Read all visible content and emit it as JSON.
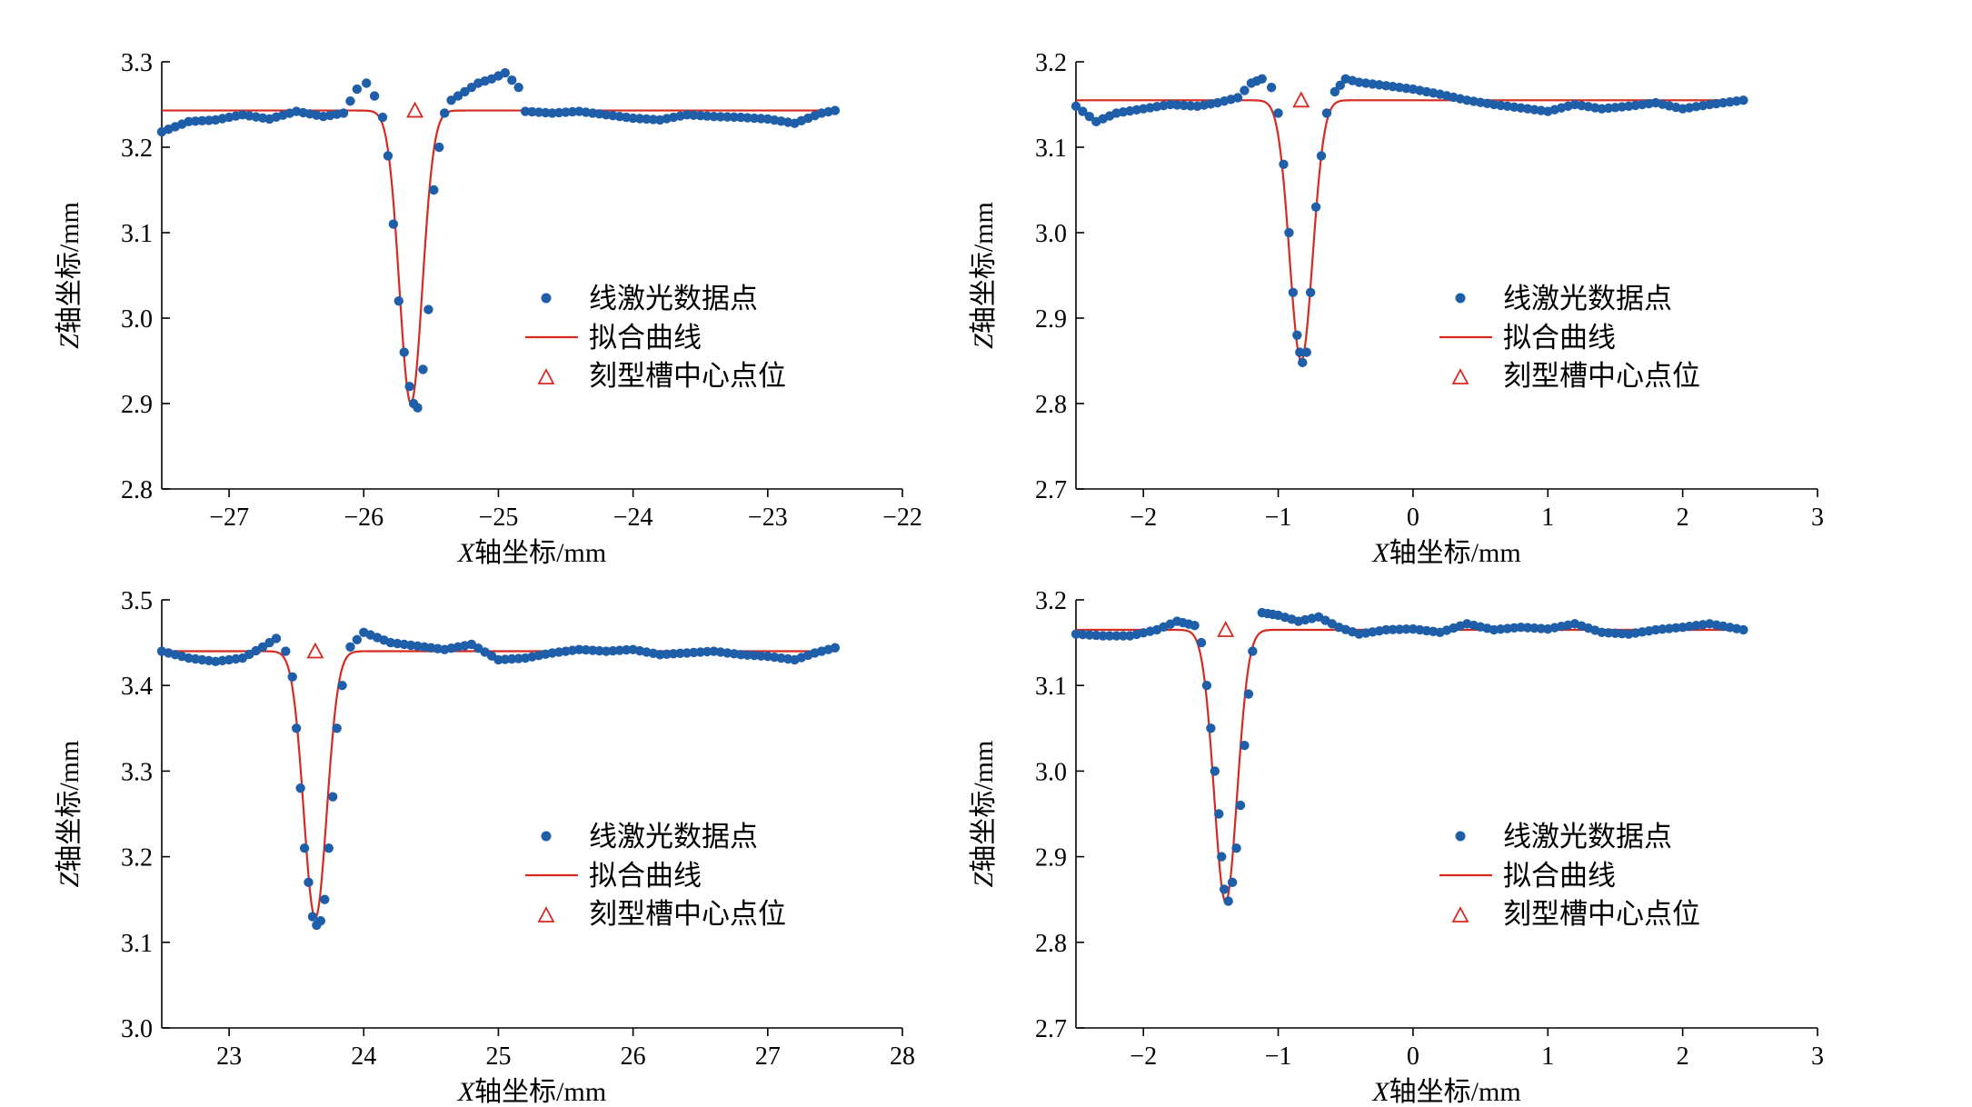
{
  "colors": {
    "points": "#1f5ea8",
    "fit": "#d42a20",
    "marker": "#d42a20",
    "axis": "#000000"
  },
  "legend": {
    "points_label": "线激光数据点",
    "fit_label": "拟合曲线",
    "center_label": "刻型槽中心点位"
  },
  "chart_data": [
    {
      "type": "scatter",
      "xlabel_var": "X",
      "xlabel_rest": "轴坐标/mm",
      "ylabel_var": "Z",
      "ylabel_rest": "轴坐标/mm",
      "xlim": [
        -27.5,
        -22
      ],
      "ylim": [
        2.8,
        3.3
      ],
      "xticks": [
        -27,
        -26,
        -25,
        -24,
        -23,
        -22
      ],
      "xtick_labels": [
        "−27",
        "−26",
        "−25",
        "−24",
        "−23",
        "−22"
      ],
      "yticks": [
        2.8,
        2.9,
        3.0,
        3.1,
        3.2,
        3.3
      ],
      "ytick_labels": [
        "2.8",
        "2.9",
        "3.0",
        "3.1",
        "3.2",
        "3.3"
      ],
      "legend_position": "center-right",
      "fit": {
        "baseline": 3.243,
        "center": -25.65,
        "depth": 0.343,
        "sigma": 0.085
      },
      "center_marker": {
        "x": -25.62,
        "y": 3.243
      },
      "series_points": [
        [
          -27.5,
          3.218
        ],
        [
          -27.3,
          3.23
        ],
        [
          -27.1,
          3.232
        ],
        [
          -26.9,
          3.238
        ],
        [
          -26.7,
          3.233
        ],
        [
          -26.5,
          3.242
        ],
        [
          -26.3,
          3.236
        ],
        [
          -26.15,
          3.24
        ],
        [
          -26.05,
          3.268
        ],
        [
          -25.98,
          3.275
        ],
        [
          -25.92,
          3.26
        ],
        [
          -25.86,
          3.235
        ],
        [
          -25.82,
          3.19
        ],
        [
          -25.78,
          3.11
        ],
        [
          -25.74,
          3.02
        ],
        [
          -25.7,
          2.96
        ],
        [
          -25.66,
          2.92
        ],
        [
          -25.63,
          2.9
        ],
        [
          -25.6,
          2.895
        ],
        [
          -25.56,
          2.94
        ],
        [
          -25.52,
          3.01
        ],
        [
          -25.48,
          3.15
        ],
        [
          -25.44,
          3.2
        ],
        [
          -25.4,
          3.24
        ],
        [
          -25.35,
          3.255
        ],
        [
          -25.25,
          3.265
        ],
        [
          -25.15,
          3.275
        ],
        [
          -25.05,
          3.28
        ],
        [
          -24.95,
          3.287
        ],
        [
          -24.85,
          3.27
        ],
        [
          -24.8,
          3.242
        ],
        [
          -24.6,
          3.24
        ],
        [
          -24.4,
          3.242
        ],
        [
          -24.2,
          3.238
        ],
        [
          -24.0,
          3.234
        ],
        [
          -23.8,
          3.232
        ],
        [
          -23.6,
          3.238
        ],
        [
          -23.4,
          3.236
        ],
        [
          -23.2,
          3.235
        ],
        [
          -23.0,
          3.233
        ],
        [
          -22.8,
          3.228
        ],
        [
          -22.6,
          3.24
        ],
        [
          -22.5,
          3.243
        ]
      ]
    },
    {
      "type": "scatter",
      "xlabel_var": "X",
      "xlabel_rest": "轴坐标/mm",
      "ylabel_var": "Z",
      "ylabel_rest": "轴坐标/mm",
      "xlim": [
        -2.5,
        3
      ],
      "ylim": [
        2.7,
        3.2
      ],
      "xticks": [
        -2,
        -1,
        0,
        1,
        2,
        3
      ],
      "xtick_labels": [
        "−2",
        "−1",
        "0",
        "1",
        "2",
        "3"
      ],
      "yticks": [
        2.7,
        2.8,
        2.9,
        3.0,
        3.1,
        3.2
      ],
      "ytick_labels": [
        "2.7",
        "2.8",
        "2.9",
        "3.0",
        "3.1",
        "3.2"
      ],
      "legend_position": "center-right",
      "fit": {
        "baseline": 3.155,
        "center": -0.83,
        "depth": 0.305,
        "sigma": 0.085
      },
      "center_marker": {
        "x": -0.83,
        "y": 3.155
      },
      "series_points": [
        [
          -2.5,
          3.148
        ],
        [
          -2.35,
          3.13
        ],
        [
          -2.2,
          3.14
        ],
        [
          -2.0,
          3.145
        ],
        [
          -1.8,
          3.15
        ],
        [
          -1.6,
          3.148
        ],
        [
          -1.45,
          3.152
        ],
        [
          -1.3,
          3.158
        ],
        [
          -1.2,
          3.175
        ],
        [
          -1.12,
          3.18
        ],
        [
          -1.05,
          3.17
        ],
        [
          -1.0,
          3.14
        ],
        [
          -0.96,
          3.08
        ],
        [
          -0.92,
          3.0
        ],
        [
          -0.89,
          2.93
        ],
        [
          -0.86,
          2.88
        ],
        [
          -0.84,
          2.86
        ],
        [
          -0.82,
          2.848
        ],
        [
          -0.79,
          2.86
        ],
        [
          -0.76,
          2.93
        ],
        [
          -0.72,
          3.03
        ],
        [
          -0.68,
          3.09
        ],
        [
          -0.64,
          3.14
        ],
        [
          -0.58,
          3.165
        ],
        [
          -0.5,
          3.18
        ],
        [
          -0.4,
          3.176
        ],
        [
          -0.2,
          3.172
        ],
        [
          0.0,
          3.168
        ],
        [
          0.2,
          3.162
        ],
        [
          0.4,
          3.155
        ],
        [
          0.6,
          3.15
        ],
        [
          0.8,
          3.146
        ],
        [
          1.0,
          3.142
        ],
        [
          1.2,
          3.15
        ],
        [
          1.4,
          3.145
        ],
        [
          1.6,
          3.148
        ],
        [
          1.8,
          3.152
        ],
        [
          2.0,
          3.145
        ],
        [
          2.2,
          3.15
        ],
        [
          2.45,
          3.155
        ]
      ]
    },
    {
      "type": "scatter",
      "xlabel_var": "X",
      "xlabel_rest": "轴坐标/mm",
      "ylabel_var": "Z",
      "ylabel_rest": "轴坐标/mm",
      "xlim": [
        22.5,
        28
      ],
      "ylim": [
        3.0,
        3.5
      ],
      "xticks": [
        23,
        24,
        25,
        26,
        27,
        28
      ],
      "xtick_labels": [
        "23",
        "24",
        "25",
        "26",
        "27",
        "28"
      ],
      "yticks": [
        3.0,
        3.1,
        3.2,
        3.3,
        3.4,
        3.5
      ],
      "ytick_labels": [
        "3.0",
        "3.1",
        "3.2",
        "3.3",
        "3.4",
        "3.5"
      ],
      "legend_position": "center-right",
      "fit": {
        "baseline": 3.44,
        "center": 23.64,
        "depth": 0.312,
        "sigma": 0.085
      },
      "center_marker": {
        "x": 23.64,
        "y": 3.44
      },
      "series_points": [
        [
          22.5,
          3.44
        ],
        [
          22.7,
          3.432
        ],
        [
          22.9,
          3.428
        ],
        [
          23.1,
          3.432
        ],
        [
          23.25,
          3.445
        ],
        [
          23.35,
          3.455
        ],
        [
          23.42,
          3.44
        ],
        [
          23.47,
          3.41
        ],
        [
          23.5,
          3.35
        ],
        [
          23.53,
          3.28
        ],
        [
          23.56,
          3.21
        ],
        [
          23.59,
          3.17
        ],
        [
          23.62,
          3.13
        ],
        [
          23.65,
          3.12
        ],
        [
          23.68,
          3.125
        ],
        [
          23.71,
          3.15
        ],
        [
          23.74,
          3.21
        ],
        [
          23.77,
          3.27
        ],
        [
          23.8,
          3.35
        ],
        [
          23.84,
          3.4
        ],
        [
          23.9,
          3.445
        ],
        [
          24.0,
          3.462
        ],
        [
          24.2,
          3.45
        ],
        [
          24.4,
          3.446
        ],
        [
          24.6,
          3.442
        ],
        [
          24.8,
          3.448
        ],
        [
          25.0,
          3.43
        ],
        [
          25.2,
          3.432
        ],
        [
          25.4,
          3.438
        ],
        [
          25.6,
          3.442
        ],
        [
          25.8,
          3.44
        ],
        [
          26.0,
          3.442
        ],
        [
          26.2,
          3.436
        ],
        [
          26.4,
          3.438
        ],
        [
          26.6,
          3.44
        ],
        [
          26.8,
          3.436
        ],
        [
          27.0,
          3.434
        ],
        [
          27.2,
          3.43
        ],
        [
          27.35,
          3.438
        ],
        [
          27.5,
          3.444
        ]
      ]
    },
    {
      "type": "scatter",
      "xlabel_var": "X",
      "xlabel_rest": "轴坐标/mm",
      "ylabel_var": "Z",
      "ylabel_rest": "轴坐标/mm",
      "xlim": [
        -2.5,
        3
      ],
      "ylim": [
        2.7,
        3.2
      ],
      "xticks": [
        -2,
        -1,
        0,
        1,
        2,
        3
      ],
      "xtick_labels": [
        "−2",
        "−1",
        "0",
        "1",
        "2",
        "3"
      ],
      "yticks": [
        2.7,
        2.8,
        2.9,
        3.0,
        3.1,
        3.2
      ],
      "ytick_labels": [
        "2.7",
        "2.8",
        "2.9",
        "3.0",
        "3.1",
        "3.2"
      ],
      "legend_position": "center-right",
      "fit": {
        "baseline": 3.165,
        "center": -1.39,
        "depth": 0.318,
        "sigma": 0.085
      },
      "center_marker": {
        "x": -1.39,
        "y": 3.165
      },
      "series_points": [
        [
          -2.5,
          3.16
        ],
        [
          -2.3,
          3.158
        ],
        [
          -2.1,
          3.158
        ],
        [
          -1.9,
          3.165
        ],
        [
          -1.75,
          3.175
        ],
        [
          -1.62,
          3.17
        ],
        [
          -1.57,
          3.15
        ],
        [
          -1.53,
          3.1
        ],
        [
          -1.5,
          3.05
        ],
        [
          -1.47,
          3.0
        ],
        [
          -1.44,
          2.95
        ],
        [
          -1.42,
          2.9
        ],
        [
          -1.4,
          2.862
        ],
        [
          -1.37,
          2.848
        ],
        [
          -1.34,
          2.87
        ],
        [
          -1.31,
          2.91
        ],
        [
          -1.28,
          2.96
        ],
        [
          -1.25,
          3.03
        ],
        [
          -1.22,
          3.09
        ],
        [
          -1.19,
          3.14
        ],
        [
          -1.12,
          3.185
        ],
        [
          -1.0,
          3.182
        ],
        [
          -0.85,
          3.175
        ],
        [
          -0.7,
          3.18
        ],
        [
          -0.55,
          3.168
        ],
        [
          -0.4,
          3.16
        ],
        [
          -0.2,
          3.165
        ],
        [
          0.0,
          3.166
        ],
        [
          0.2,
          3.162
        ],
        [
          0.4,
          3.172
        ],
        [
          0.6,
          3.165
        ],
        [
          0.8,
          3.168
        ],
        [
          1.0,
          3.166
        ],
        [
          1.2,
          3.172
        ],
        [
          1.4,
          3.162
        ],
        [
          1.6,
          3.16
        ],
        [
          1.8,
          3.165
        ],
        [
          2.0,
          3.168
        ],
        [
          2.2,
          3.172
        ],
        [
          2.45,
          3.165
        ]
      ]
    }
  ]
}
